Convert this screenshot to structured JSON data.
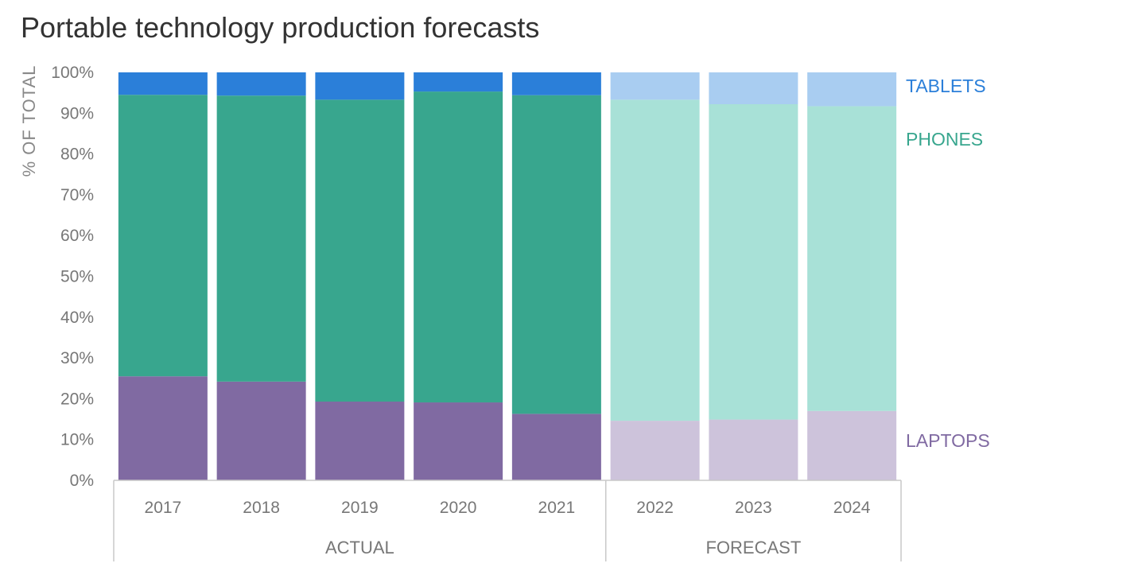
{
  "chart_data": {
    "type": "bar",
    "stacked": true,
    "normalized": true,
    "title": "Portable technology production forecasts",
    "ylabel": "% OF TOTAL",
    "ylim": [
      0,
      100
    ],
    "yticks": [
      "0%",
      "10%",
      "20%",
      "30%",
      "40%",
      "50%",
      "60%",
      "70%",
      "80%",
      "90%",
      "100%"
    ],
    "categories": [
      "2017",
      "2018",
      "2019",
      "2020",
      "2021",
      "2022",
      "2023",
      "2024"
    ],
    "groups": [
      {
        "label": "ACTUAL",
        "categories": [
          "2017",
          "2018",
          "2019",
          "2020",
          "2021"
        ]
      },
      {
        "label": "FORECAST",
        "categories": [
          "2022",
          "2023",
          "2024"
        ]
      }
    ],
    "series": [
      {
        "name": "LAPTOPS",
        "values": [
          25.5,
          24.2,
          19.3,
          19.1,
          16.3,
          14.6,
          14.9,
          17.0
        ],
        "color": "#806aa2",
        "forecast_color": "#cdc3db",
        "label_color": "#806aa2"
      },
      {
        "name": "PHONES",
        "values": [
          69.0,
          70.1,
          74.0,
          76.2,
          78.1,
          78.7,
          77.3,
          74.7
        ],
        "color": "#38a68e",
        "forecast_color": "#a8e1d7",
        "label_color": "#38a68e"
      },
      {
        "name": "TABLETS",
        "values": [
          5.5,
          5.7,
          6.7,
          4.7,
          5.6,
          6.7,
          7.8,
          8.3
        ],
        "color": "#2b7fd9",
        "forecast_color": "#a9cdf1",
        "label_color": "#2b7fd9"
      }
    ],
    "grid": false,
    "legend": "direct labels right"
  }
}
